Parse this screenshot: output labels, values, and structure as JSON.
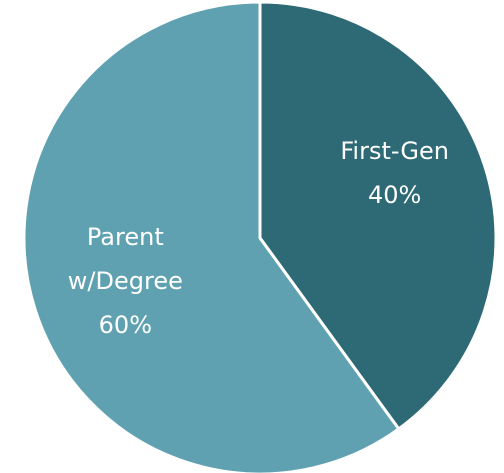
{
  "chart_data": {
    "type": "pie",
    "categories": [
      "First-Gen",
      "Parent w/Degree"
    ],
    "values": [
      40,
      60
    ],
    "value_labels": [
      "40%",
      "60%"
    ],
    "colors": [
      "#2e6a75",
      "#5fa1b1"
    ]
  }
}
